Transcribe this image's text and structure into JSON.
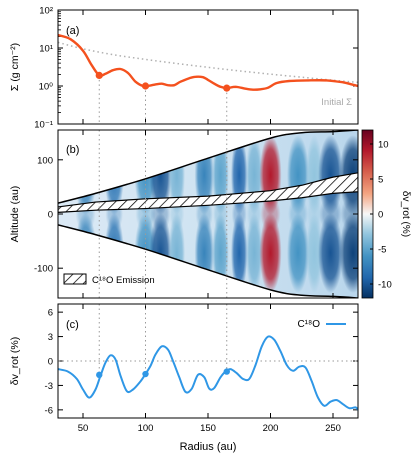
{
  "colors": {
    "sigma_line": "#f4511e",
    "initial_line": "#b0b0b0",
    "vrot_line": "#2f97e6",
    "guide": "#9a9a9a"
  },
  "chart_data": [
    {
      "panel_label": "(a)",
      "type": "line",
      "ylabel": "Σ   (g cm⁻²)",
      "yscale": "log",
      "ylim": [
        0.1,
        100
      ],
      "yticks": [
        "10⁻¹",
        "10⁰",
        "10¹",
        "10²"
      ],
      "xlim": [
        30,
        270
      ],
      "annotation": "Initial Σ",
      "series": [
        {
          "name": "Initial Σ",
          "style": "dotted",
          "x": [
            30,
            50,
            75,
            100,
            125,
            150,
            175,
            200,
            225,
            250,
            270
          ],
          "y": [
            14,
            9.5,
            6.6,
            5.0,
            3.9,
            3.1,
            2.5,
            2.05,
            1.7,
            1.42,
            1.25
          ]
        },
        {
          "name": "Σ",
          "style": "solid",
          "x": [
            30,
            40,
            50,
            57,
            63,
            68,
            74,
            80,
            86,
            92,
            98,
            103,
            108,
            113,
            118,
            123,
            128,
            135,
            140,
            146,
            150,
            155,
            160,
            165,
            172,
            180,
            186,
            192,
            198,
            205,
            215,
            230,
            245,
            258,
            265,
            270
          ],
          "y": [
            22,
            17,
            8.5,
            3.5,
            1.9,
            2.1,
            2.6,
            2.8,
            2.2,
            1.3,
            1.0,
            1.02,
            1.1,
            1.15,
            1.05,
            1.05,
            1.3,
            1.6,
            1.75,
            1.7,
            1.45,
            1.15,
            0.95,
            0.88,
            0.95,
            0.85,
            0.8,
            0.82,
            0.9,
            1.2,
            1.35,
            1.4,
            1.4,
            1.25,
            1.1,
            1.0
          ]
        }
      ],
      "markers": [
        {
          "x": 63,
          "y": 1.9
        },
        {
          "x": 100,
          "y": 1.0
        },
        {
          "x": 165,
          "y": 0.88
        }
      ]
    },
    {
      "panel_label": "(b)",
      "type": "heatmap",
      "ylabel": "Altitude   (au)",
      "ylim": [
        -155,
        155
      ],
      "yticks": [
        -100,
        0,
        100
      ],
      "xlim": [
        30,
        270
      ],
      "colorbar": {
        "label": "δv_rot   (%)",
        "ticks": [
          10,
          5,
          0,
          -5,
          -10
        ],
        "range": [
          -12,
          12
        ]
      },
      "legend": "C¹⁸O Emission",
      "legend_position": "bottom-left",
      "surface_upper": {
        "x": [
          30,
          60,
          100,
          150,
          200,
          225,
          250,
          270
        ],
        "y": [
          20,
          38,
          65,
          103,
          140,
          150,
          152,
          155
        ]
      },
      "surface_lower": {
        "x": [
          30,
          60,
          100,
          150,
          200,
          225,
          250,
          270
        ],
        "y": [
          -20,
          -38,
          -65,
          -103,
          -140,
          -150,
          -152,
          -155
        ]
      },
      "emission_top": {
        "x": [
          30,
          60,
          100,
          150,
          200,
          225,
          250,
          270
        ],
        "y": [
          13,
          22,
          28,
          33,
          43,
          53,
          68,
          76
        ]
      },
      "emission_bottom": {
        "x": [
          30,
          60,
          100,
          150,
          200,
          225,
          250,
          270
        ],
        "y": [
          3,
          7,
          10,
          16,
          24,
          30,
          38,
          41
        ]
      },
      "bands": [
        {
          "x": 52,
          "w": 8,
          "v": -7
        },
        {
          "x": 75,
          "w": 7,
          "v": -8
        },
        {
          "x": 100,
          "w": 8,
          "v": -6
        },
        {
          "x": 112,
          "w": 8,
          "v": -10
        },
        {
          "x": 125,
          "w": 6,
          "v": -4
        },
        {
          "x": 147,
          "w": 7,
          "v": -7
        },
        {
          "x": 160,
          "w": 6,
          "v": -5
        },
        {
          "x": 175,
          "w": 6,
          "v": -9
        },
        {
          "x": 187,
          "w": 6,
          "v": -4
        },
        {
          "x": 200,
          "w": 8,
          "v": 9
        },
        {
          "x": 222,
          "w": 8,
          "v": -6
        },
        {
          "x": 235,
          "w": 6,
          "v": -3
        },
        {
          "x": 248,
          "w": 9,
          "v": -10
        },
        {
          "x": 266,
          "w": 10,
          "v": -11
        }
      ]
    },
    {
      "panel_label": "(c)",
      "type": "line",
      "xlabel": "Radius   (au)",
      "ylabel": "δv_rot   (%)",
      "ylim": [
        -7,
        7
      ],
      "yticks": [
        -6,
        -3,
        0,
        3,
        6
      ],
      "xlim": [
        30,
        270
      ],
      "xticks": [
        50,
        100,
        150,
        200,
        250
      ],
      "legend_position": "top-right",
      "series": [
        {
          "name": "C¹⁸O",
          "x": [
            30,
            38,
            45,
            50,
            55,
            60,
            64,
            68,
            72,
            76,
            80,
            85,
            90,
            96,
            100,
            104,
            108,
            113,
            118,
            122,
            127,
            132,
            137,
            142,
            147,
            151,
            155,
            160,
            164,
            168,
            173,
            178,
            183,
            188,
            193,
            198,
            203,
            208,
            213,
            218,
            223,
            228,
            233,
            238,
            243,
            248,
            253,
            258,
            263,
            268,
            270
          ],
          "y": [
            -1.0,
            -1.3,
            -2.2,
            -3.5,
            -4.5,
            -3.5,
            -1.8,
            -0.2,
            0.7,
            0.2,
            -1.8,
            -3.7,
            -3.5,
            -2.5,
            -1.6,
            -0.6,
            0.8,
            1.8,
            1.4,
            0.0,
            -2.0,
            -3.8,
            -3.4,
            -1.7,
            -2.0,
            -3.4,
            -3.3,
            -2.0,
            -1.3,
            -1.0,
            -1.5,
            -2.2,
            -2.2,
            -0.5,
            1.8,
            3.0,
            2.6,
            1.2,
            -0.5,
            -1.2,
            -0.7,
            -0.8,
            -2.5,
            -4.5,
            -5.5,
            -5.0,
            -4.8,
            -5.3,
            -5.8,
            -5.7,
            -6.0
          ]
        }
      ],
      "markers": [
        {
          "x": 63,
          "y": -1.7
        },
        {
          "x": 100,
          "y": -1.6
        },
        {
          "x": 165,
          "y": -1.3
        }
      ]
    }
  ],
  "guide_lines_x": [
    63,
    100,
    165
  ]
}
